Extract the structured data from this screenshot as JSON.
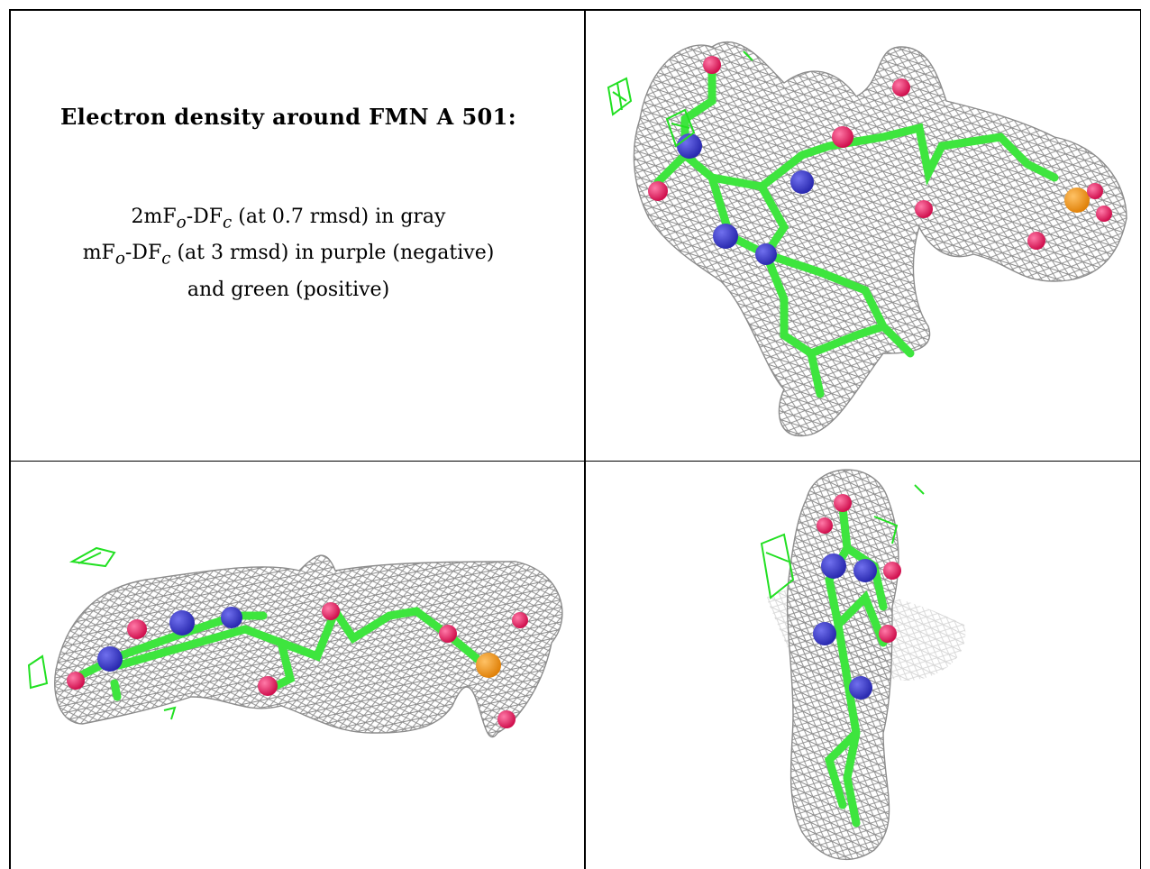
{
  "caption": {
    "title": "Electron density around FMN A 501:",
    "line1": {
      "prefix": "2mF",
      "sub1": "o",
      "mid": "-DF",
      "sub2": "c",
      "suffix": " (at 0.7 rmsd) in gray"
    },
    "line2": {
      "prefix": "mF",
      "sub1": "o",
      "mid": "-DF",
      "sub2": "c",
      "suffix": " (at 3 rmsd) in purple (negative)"
    },
    "line3": "and green (positive)"
  },
  "colors": {
    "mesh": "#8c8c8c",
    "carbon": "#3ee53e",
    "nitrogen": "#3a3ad0",
    "oxygen": "#e8185e",
    "phosphorus": "#f39a1e",
    "positive_density": "#22e022"
  },
  "views": [
    {
      "name": "top-view"
    },
    {
      "name": "side-view"
    },
    {
      "name": "end-view"
    }
  ]
}
